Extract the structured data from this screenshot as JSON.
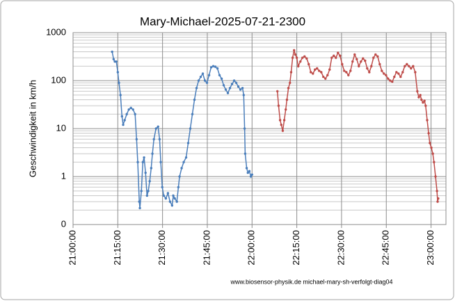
{
  "chart_data": {
    "type": "line",
    "title": "Mary-Michael-2025-07-21-2300",
    "y_label": "Geschwindigkeit in km/h",
    "annotation": "www.biosensor-physik.de  michael-mary-sh-verfolgt-diag04",
    "log_y": true,
    "grid": true,
    "minor_grid": true,
    "ylim": [
      0.1,
      1000
    ],
    "yticks": [
      {
        "value": 0.1,
        "label": "0"
      },
      1,
      10,
      100,
      1000
    ],
    "xlim": [
      "21:00:00",
      "23:05:00"
    ],
    "xticks": [
      "21:00:00",
      "21:15:00",
      "21:30:00",
      "21:45:00",
      "22:00:00",
      "22:15:00",
      "22:30:00",
      "22:45:00",
      "23:00:00"
    ],
    "series": [
      {
        "color": "#4a7ebb",
        "x": [
          "21:13:06",
          "21:13:36",
          "21:14:00",
          "21:14:30",
          "21:15:00",
          "21:15:24",
          "21:15:54",
          "21:16:24",
          "21:16:48",
          "21:17:18",
          "21:18:00",
          "21:18:42",
          "21:19:24",
          "21:20:06",
          "21:20:48",
          "21:21:18",
          "21:21:42",
          "21:22:12",
          "21:22:24",
          "21:22:54",
          "21:23:24",
          "21:23:48",
          "21:24:18",
          "21:24:48",
          "21:25:12",
          "21:25:42",
          "21:26:12",
          "21:26:36",
          "21:27:06",
          "21:27:48",
          "21:28:30",
          "21:29:00",
          "21:29:24",
          "21:29:54",
          "21:30:24",
          "21:31:06",
          "21:31:48",
          "21:32:30",
          "21:33:12",
          "21:33:36",
          "21:34:06",
          "21:34:48",
          "21:35:18",
          "21:35:42",
          "21:36:24",
          "21:37:06",
          "21:37:54",
          "21:38:36",
          "21:39:18",
          "21:40:00",
          "21:40:42",
          "21:41:24",
          "21:42:06",
          "21:42:48",
          "21:43:30",
          "21:44:12",
          "21:44:54",
          "21:45:36",
          "21:46:18",
          "21:47:00",
          "21:47:42",
          "21:48:24",
          "21:49:06",
          "21:49:48",
          "21:50:30",
          "21:51:12",
          "21:51:54",
          "21:52:36",
          "21:53:18",
          "21:54:00",
          "21:54:42",
          "21:55:24",
          "21:56:06",
          "21:56:48",
          "21:57:12",
          "21:57:30",
          "21:57:42",
          "21:58:12",
          "21:58:36",
          "21:59:06",
          "21:59:36",
          "22:00:00"
        ],
        "values": [
          400,
          280,
          250,
          250,
          150,
          90,
          50,
          18,
          12,
          15,
          20,
          25,
          27,
          25,
          20,
          6,
          2,
          0.3,
          0.22,
          0.5,
          2,
          2.5,
          1.2,
          0.4,
          0.5,
          0.8,
          1.5,
          3,
          6,
          10,
          11,
          6,
          2,
          0.6,
          0.4,
          0.35,
          0.45,
          0.3,
          0.25,
          0.4,
          0.35,
          0.3,
          0.6,
          1,
          1.5,
          2,
          2.5,
          5,
          10,
          20,
          40,
          70,
          100,
          120,
          140,
          100,
          90,
          130,
          190,
          200,
          195,
          180,
          130,
          110,
          80,
          65,
          55,
          70,
          85,
          100,
          90,
          75,
          65,
          70,
          50,
          10,
          3,
          1.5,
          1.2,
          1.3,
          1,
          1.1
        ]
      },
      {
        "color": "#be4b48",
        "x": [
          "22:08:30",
          "22:08:54",
          "22:09:24",
          "22:09:48",
          "22:10:18",
          "22:10:48",
          "22:11:18",
          "22:11:42",
          "22:12:12",
          "22:12:42",
          "22:13:06",
          "22:13:36",
          "22:14:06",
          "22:14:30",
          "22:15:00",
          "22:15:30",
          "22:16:12",
          "22:16:54",
          "22:17:36",
          "22:18:18",
          "22:19:00",
          "22:19:42",
          "22:20:24",
          "22:21:06",
          "22:21:48",
          "22:22:30",
          "22:23:12",
          "22:23:54",
          "22:24:36",
          "22:25:18",
          "22:26:00",
          "22:26:42",
          "22:27:24",
          "22:28:06",
          "22:28:48",
          "22:29:30",
          "22:30:12",
          "22:30:54",
          "22:31:36",
          "22:32:18",
          "22:33:00",
          "22:33:42",
          "22:34:24",
          "22:35:06",
          "22:35:48",
          "22:36:30",
          "22:37:12",
          "22:37:54",
          "22:38:36",
          "22:39:18",
          "22:40:00",
          "22:40:42",
          "22:41:24",
          "22:42:06",
          "22:42:48",
          "22:43:30",
          "22:44:12",
          "22:44:54",
          "22:45:36",
          "22:46:18",
          "22:47:00",
          "22:47:42",
          "22:48:24",
          "22:49:06",
          "22:49:48",
          "22:50:30",
          "22:51:12",
          "22:51:54",
          "22:52:36",
          "22:53:18",
          "22:54:00",
          "22:54:42",
          "22:55:24",
          "22:55:54",
          "22:56:24",
          "22:56:48",
          "22:57:18",
          "22:57:48",
          "22:58:12",
          "22:58:42",
          "22:59:12",
          "22:59:36",
          "23:00:06",
          "23:00:36",
          "23:01:00",
          "23:01:30",
          "23:02:00",
          "23:02:12",
          "23:02:24"
        ],
        "values": [
          60,
          30,
          15,
          12,
          9,
          15,
          25,
          40,
          70,
          90,
          150,
          300,
          430,
          350,
          300,
          200,
          250,
          300,
          320,
          290,
          220,
          150,
          140,
          170,
          180,
          160,
          150,
          120,
          110,
          130,
          170,
          300,
          330,
          300,
          380,
          330,
          220,
          160,
          150,
          130,
          160,
          250,
          350,
          280,
          200,
          250,
          290,
          260,
          180,
          150,
          200,
          300,
          350,
          320,
          220,
          160,
          140,
          130,
          110,
          100,
          95,
          120,
          150,
          140,
          120,
          150,
          200,
          220,
          200,
          180,
          200,
          150,
          60,
          45,
          50,
          40,
          35,
          38,
          30,
          15,
          8,
          5,
          4,
          3,
          2,
          1,
          0.5,
          0.3,
          0.35
        ]
      }
    ]
  }
}
